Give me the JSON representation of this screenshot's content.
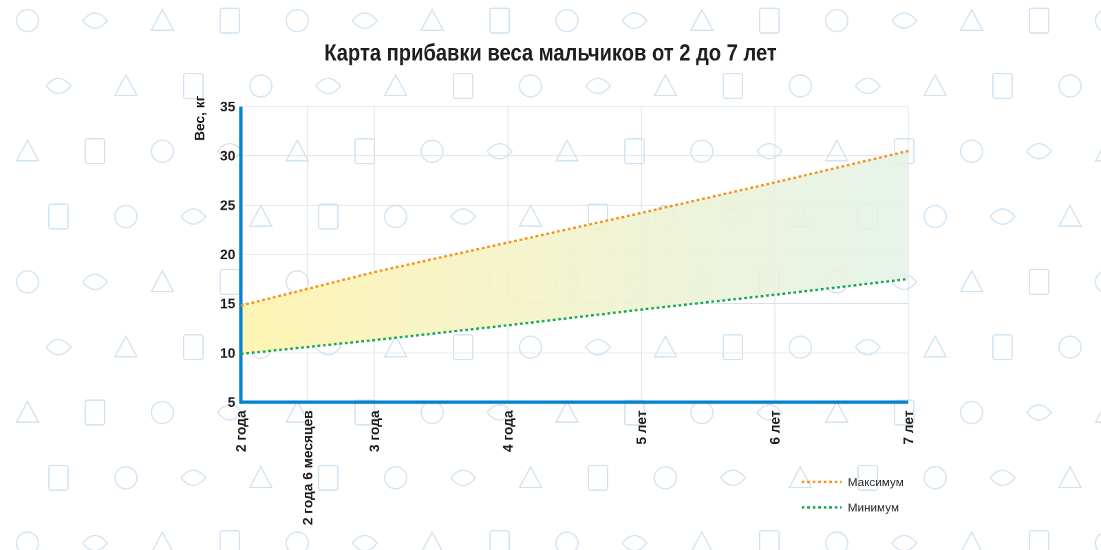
{
  "chart_data": {
    "type": "area",
    "title": "Карта прибавки веса мальчиков от 2 до 7 лет",
    "ylabel": "Вес, кг",
    "xlabel": "",
    "x": [
      2,
      2.5,
      3,
      4,
      5,
      6,
      7
    ],
    "categories": [
      "2 года",
      "2 года 6 месяцев",
      "3 года",
      "4 года",
      "5 лет",
      "6 лет",
      "7 лет"
    ],
    "ylim": [
      5,
      35
    ],
    "yticks": [
      5,
      10,
      15,
      20,
      25,
      30,
      35
    ],
    "grid": true,
    "legend_position": "bottom-right",
    "series": [
      {
        "name": "Максимум",
        "values": [
          14.8,
          16.5,
          18.2,
          21.2,
          24.2,
          27.3,
          30.5
        ],
        "color": "#f7941d"
      },
      {
        "name": "Минимум",
        "values": [
          9.9,
          10.6,
          11.3,
          12.8,
          14.4,
          15.9,
          17.5
        ],
        "color": "#1aab5a"
      }
    ],
    "axis_color": "#0a84d0",
    "band_colors": [
      "#fff3b0",
      "#e3f2e8"
    ]
  }
}
